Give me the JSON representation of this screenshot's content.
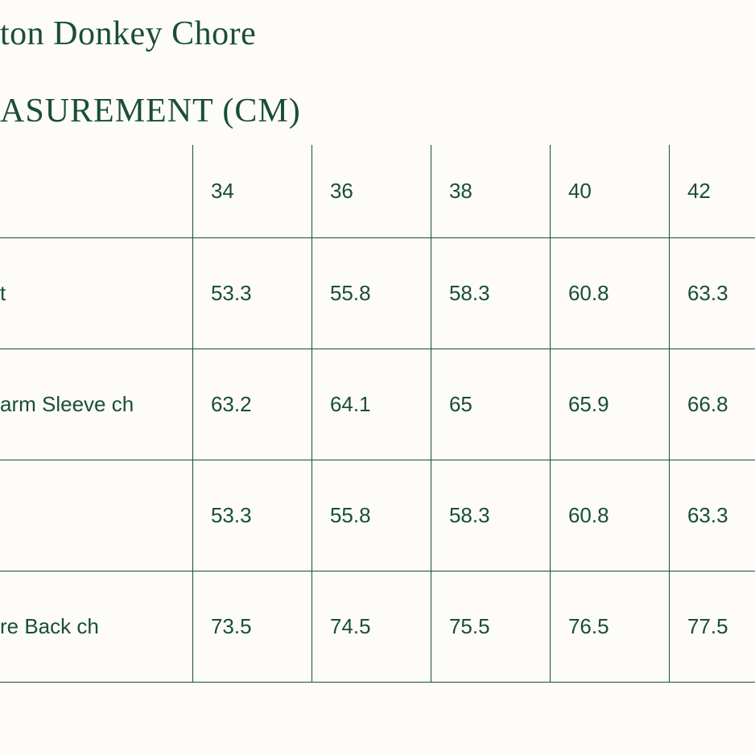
{
  "title": "ton Donkey Chore",
  "subtitle": "ASUREMENT (CM)",
  "colors": {
    "text": "#1a4d3a",
    "border": "#1a4d3a",
    "background": "#fdfcf8"
  },
  "typography": {
    "title_font": "Georgia, serif",
    "title_fontsize": 42,
    "cell_font": "sans-serif",
    "cell_fontsize": 26
  },
  "table": {
    "type": "table",
    "columns": [
      "",
      "34",
      "36",
      "38",
      "40",
      "42"
    ],
    "row_labels": [
      "t",
      "arm Sleeve ch",
      "",
      "re Back ch"
    ],
    "rows": [
      [
        "53.3",
        "55.8",
        "58.3",
        "60.8",
        "63.3"
      ],
      [
        "63.2",
        "64.1",
        "65",
        "65.9",
        "66.8"
      ],
      [
        "53.3",
        "55.8",
        "58.3",
        "60.8",
        "63.3"
      ],
      [
        "73.5",
        "74.5",
        "75.5",
        "76.5",
        "77.5"
      ]
    ],
    "label_col_width": 340,
    "data_col_width": 140,
    "header_row_height": 115,
    "data_row_height": 138
  }
}
